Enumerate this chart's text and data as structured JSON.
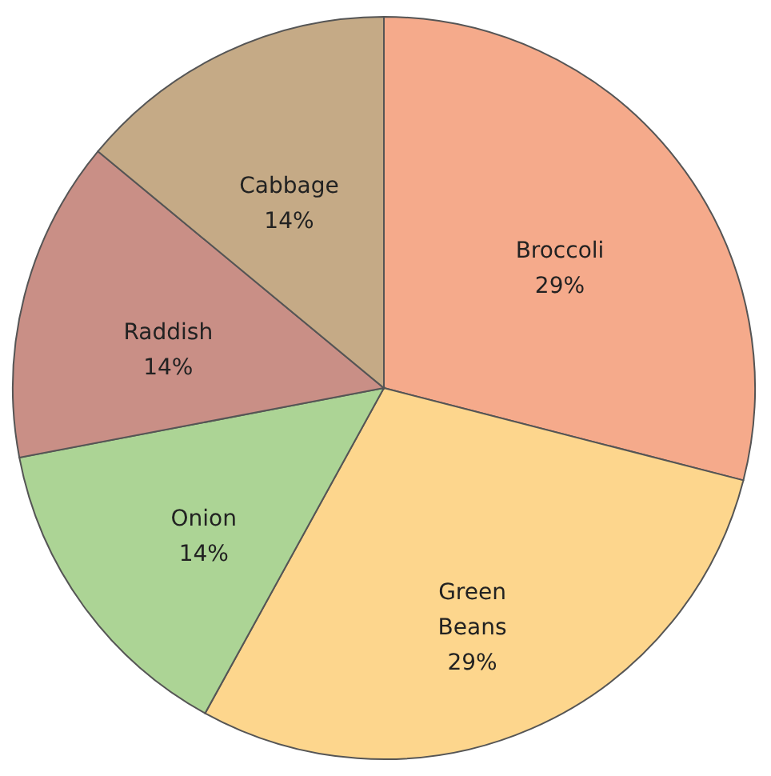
{
  "chart_data": {
    "type": "pie",
    "categories": [
      "Broccoli",
      "Green Beans",
      "Onion",
      "Raddish",
      "Cabbage"
    ],
    "values": [
      29,
      29,
      14,
      14,
      14
    ],
    "colors": [
      "#f5aa8b",
      "#fdd68d",
      "#acd495",
      "#c98f86",
      "#c5aa86"
    ],
    "value_labels": [
      "29%",
      "29%",
      "14%",
      "14%",
      "14%"
    ],
    "legend": false
  }
}
